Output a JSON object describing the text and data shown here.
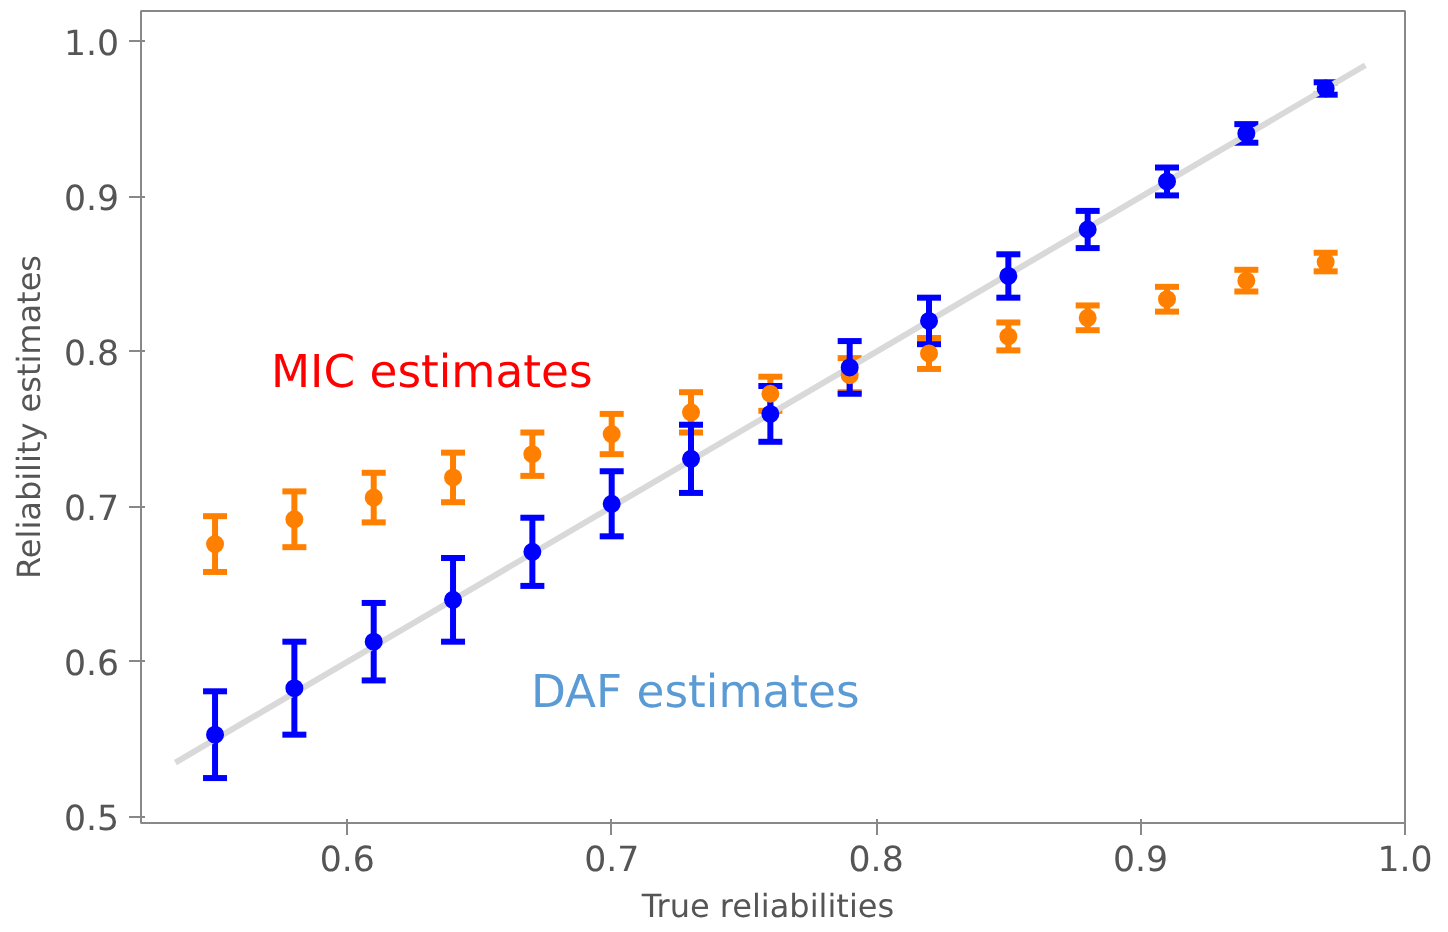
{
  "chart_data": {
    "type": "scatter",
    "xlabel": "True  reliabilities",
    "ylabel": "Reliability estimates",
    "x": [
      0.55,
      0.58,
      0.61,
      0.64,
      0.67,
      0.7,
      0.73,
      0.76,
      0.79,
      0.82,
      0.85,
      0.88,
      0.91,
      0.94,
      0.97
    ],
    "series": [
      {
        "type": "line",
        "marker": "none",
        "color": "#d9d9d9",
        "x": [
          0.535,
          0.985
        ],
        "values": [
          0.535,
          0.985
        ]
      },
      {
        "color": "#ff8000",
        "values": [
          0.676,
          0.692,
          0.706,
          0.719,
          0.734,
          0.747,
          0.761,
          0.773,
          0.785,
          0.799,
          0.81,
          0.822,
          0.834,
          0.846,
          0.858
        ],
        "errors": [
          0.018,
          0.018,
          0.016,
          0.016,
          0.014,
          0.013,
          0.013,
          0.011,
          0.011,
          0.01,
          0.009,
          0.008,
          0.008,
          0.007,
          0.006
        ]
      },
      {
        "color": "#0000ff",
        "values": [
          0.553,
          0.583,
          0.613,
          0.64,
          0.671,
          0.702,
          0.731,
          0.76,
          0.79,
          0.82,
          0.849,
          0.879,
          0.91,
          0.941,
          0.97
        ],
        "errors": [
          0.028,
          0.03,
          0.025,
          0.027,
          0.022,
          0.021,
          0.022,
          0.018,
          0.017,
          0.015,
          0.014,
          0.012,
          0.009,
          0.006,
          0.004
        ]
      }
    ],
    "annotations": [
      "MIC estimates",
      "DAF estimates"
    ],
    "grid": false,
    "xlim": [
      0.522,
      1.0
    ],
    "ylim": [
      0.496,
      1.02
    ],
    "xticks": [
      0.6,
      0.7,
      0.8,
      0.9,
      {
        "value": 1.0,
        "label": "1.0"
      }
    ],
    "yticks": [
      0.5,
      0.6,
      0.7,
      0.8,
      0.9,
      {
        "value": 1.0,
        "label": "1.0"
      }
    ]
  }
}
